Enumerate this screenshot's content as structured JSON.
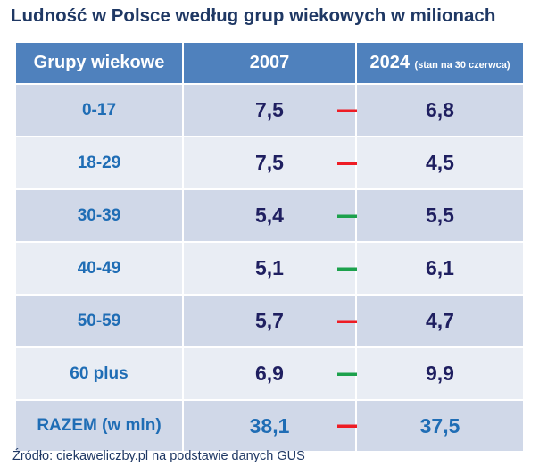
{
  "title": "Ludność w Polsce według grup wiekowych w milionach",
  "header": {
    "col_group": "Grupy wiekowe",
    "col_2007": "2007",
    "col_2024": "2024",
    "col_2024_note": "(stan na 30 czerwca)"
  },
  "colors": {
    "decrease": "#ee1c24",
    "increase": "#1ca14c"
  },
  "chart_data": {
    "type": "table",
    "title": "Ludność w Polsce według grup wiekowych w milionach",
    "columns": [
      "Grupy wiekowe",
      "2007",
      "2024 (stan na 30 czerwca)"
    ],
    "rows": [
      {
        "group": "0-17",
        "v2007": "7,5",
        "v2024": "6,8",
        "trend": "down"
      },
      {
        "group": "18-29",
        "v2007": "7,5",
        "v2024": "4,5",
        "trend": "down"
      },
      {
        "group": "30-39",
        "v2007": "5,4",
        "v2024": "5,5",
        "trend": "up"
      },
      {
        "group": "40-49",
        "v2007": "5,1",
        "v2024": "6,1",
        "trend": "up"
      },
      {
        "group": "50-59",
        "v2007": "5,7",
        "v2024": "4,7",
        "trend": "down"
      },
      {
        "group": "60 plus",
        "v2007": "6,9",
        "v2024": "9,9",
        "trend": "up"
      }
    ],
    "total": {
      "group": "RAZEM (w mln)",
      "v2007": "38,1",
      "v2024": "37,5",
      "trend": "down"
    }
  },
  "source": "Źródło: ciekaweliczby.pl na podstawie danych GUS"
}
